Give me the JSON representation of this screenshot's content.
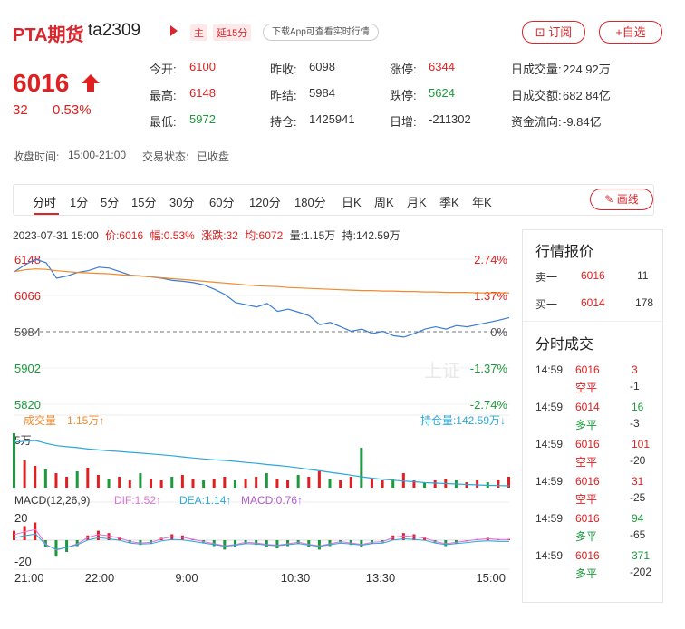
{
  "header": {
    "title": "PTA期货",
    "code": "ta2309",
    "tag_main": "主",
    "tag_delay": "延15分",
    "download": "下载App可查看实时行情",
    "subscribe": "订阅",
    "add_favorite": "+自选"
  },
  "quote": {
    "price": "6016",
    "change": "32",
    "change_pct": "0.53%"
  },
  "stats": [
    {
      "label": "今开:",
      "value": "6100",
      "color": "red"
    },
    {
      "label": "昨收:",
      "value": "6098",
      "color": "normal"
    },
    {
      "label": "涨停:",
      "value": "6344",
      "color": "red"
    },
    {
      "label": "日成交量:",
      "value": "224.92万",
      "color": "normal"
    },
    {
      "label": "最高:",
      "value": "6148",
      "color": "red"
    },
    {
      "label": "昨结:",
      "value": "5984",
      "color": "normal"
    },
    {
      "label": "跌停:",
      "value": "5624",
      "color": "green"
    },
    {
      "label": "日成交额:",
      "value": "682.84亿",
      "color": "normal"
    },
    {
      "label": "最低:",
      "value": "5972",
      "color": "green"
    },
    {
      "label": "持仓:",
      "value": "1425941",
      "color": "normal"
    },
    {
      "label": "日增:",
      "value": "-211302",
      "color": "normal"
    },
    {
      "label": "资金流向:",
      "value": "-9.84亿",
      "color": "normal"
    }
  ],
  "status": {
    "close_time_label": "收盘时间:",
    "close_time": "15:00-21:00",
    "state_label": "交易状态:",
    "state": "已收盘"
  },
  "tabs": [
    "分时",
    "1分",
    "5分",
    "15分",
    "30分",
    "60分",
    "120分",
    "180分",
    "日K",
    "周K",
    "月K",
    "季K",
    "年K"
  ],
  "draw_button": "画线",
  "info_bar": {
    "datetime": "2023-07-31 15:00",
    "price": "价:6016",
    "amp": "幅:0.53%",
    "chg": "涨跌:32",
    "avg": "均:6072",
    "vol": "量:1.15万",
    "hold": "持:142.59万"
  },
  "chart_data": {
    "type": "line",
    "y_ticks_left": [
      "6148",
      "6066",
      "5984",
      "5902",
      "5820"
    ],
    "y_ticks_right": [
      "2.74%",
      "1.37%",
      "0%",
      "-1.37%",
      "-2.74%"
    ],
    "x_ticks": [
      "21:00",
      "22:00",
      "9:00",
      "10:30",
      "13:30",
      "15:00"
    ],
    "watermark": "上证",
    "volume_label": "成交量",
    "volume_value": "1.15万↑",
    "hold_label": "持仓量:142.59万↓",
    "volume_axis": "5万",
    "macd_label": "MACD(12,26,9)",
    "dif": "DIF:1.52↑",
    "dea": "DEA:1.14↑",
    "macd": "MACD:0.76↑",
    "macd_ticks": [
      "20",
      "-20"
    ],
    "ylim": [
      5820,
      6148
    ],
    "series": [
      {
        "name": "价",
        "values": [
          6120,
          6135,
          6148,
          6140,
          6105,
          6110,
          6118,
          6122,
          6130,
          6128,
          6120,
          6112,
          6110,
          6108,
          6105,
          6100,
          6098,
          6095,
          6090,
          6080,
          6068,
          6050,
          6045,
          6040,
          6048,
          6030,
          6035,
          6028,
          6020,
          6000,
          6005,
          5995,
          5985,
          5990,
          5980,
          5985,
          5975,
          5972,
          5980,
          5990,
          5995,
          5990,
          5998,
          5995,
          6000,
          6005,
          6010,
          6016
        ]
      },
      {
        "name": "均",
        "values": [
          6120,
          6124,
          6126,
          6125,
          6122,
          6120,
          6118,
          6117,
          6116,
          6115,
          6113,
          6111,
          6110,
          6108,
          6106,
          6104,
          6102,
          6100,
          6098,
          6096,
          6094,
          6092,
          6090,
          6088,
          6087,
          6086,
          6084,
          6083,
          6082,
          6081,
          6080,
          6079,
          6078,
          6077,
          6077,
          6076,
          6076,
          6075,
          6075,
          6074,
          6074,
          6073,
          6073,
          6073,
          6072,
          6072,
          6072,
          6072
        ]
      }
    ],
    "hold_series": [
      162,
      162.5,
      162.8,
      161.5,
      160.5,
      160,
      159.6,
      159,
      158.6,
      158.2,
      157.9,
      157.5,
      157.2,
      156.8,
      156.4,
      156,
      155.5,
      155,
      154.6,
      154.2,
      153.9,
      153.5,
      153,
      152.6,
      152.1,
      151.7,
      151.2,
      150.6,
      149.9,
      149.3,
      148.6,
      148,
      147.3,
      146.6,
      146,
      145.5,
      145.1,
      144.7,
      144.4,
      144,
      143.8,
      143.6,
      143.4,
      143.2,
      143,
      142.8,
      142.7,
      142.59
    ],
    "volume_series": [
      30,
      15,
      12,
      10,
      8,
      6,
      9,
      11,
      7,
      5,
      6,
      4,
      8,
      5,
      4,
      6,
      7,
      5,
      4,
      5,
      6,
      4,
      5,
      6,
      8,
      5,
      4,
      7,
      6,
      9,
      5,
      4,
      6,
      22,
      5,
      4,
      5,
      8,
      4,
      3,
      4,
      5,
      4,
      3,
      4,
      3,
      4,
      6
    ],
    "macd_series": [
      8,
      12,
      15,
      -6,
      -14,
      -10,
      -5,
      4,
      8,
      6,
      3,
      -2,
      -4,
      -3,
      2,
      5,
      4,
      1,
      -2,
      -5,
      -8,
      -6,
      -3,
      -4,
      -6,
      -7,
      -5,
      -3,
      -6,
      -8,
      -5,
      -2,
      -4,
      -6,
      -3,
      -2,
      4,
      6,
      5,
      3,
      -2,
      -5,
      -3,
      -1,
      1,
      2,
      1,
      1
    ]
  },
  "side": {
    "quote_title": "行情报价",
    "ask": {
      "label": "卖一",
      "price": "6016",
      "vol": "11"
    },
    "bid": {
      "label": "买一",
      "price": "6014",
      "vol": "178"
    },
    "trades_title": "分时成交",
    "trades": [
      {
        "time": "14:59",
        "price": "6016",
        "vol": "3",
        "vol_color": "red",
        "type": "空平",
        "delta": "-1"
      },
      {
        "time": "14:59",
        "price": "6014",
        "vol": "16",
        "vol_color": "green",
        "type": "多平",
        "delta": "-3"
      },
      {
        "time": "14:59",
        "price": "6016",
        "vol": "101",
        "vol_color": "red",
        "type": "空平",
        "delta": "-20"
      },
      {
        "time": "14:59",
        "price": "6016",
        "vol": "31",
        "vol_color": "red",
        "type": "空平",
        "delta": "-25"
      },
      {
        "time": "14:59",
        "price": "6016",
        "vol": "94",
        "vol_color": "green",
        "type": "多平",
        "delta": "-65"
      },
      {
        "time": "14:59",
        "price": "6016",
        "vol": "371",
        "vol_color": "green",
        "type": "多平",
        "delta": "-202"
      }
    ]
  }
}
